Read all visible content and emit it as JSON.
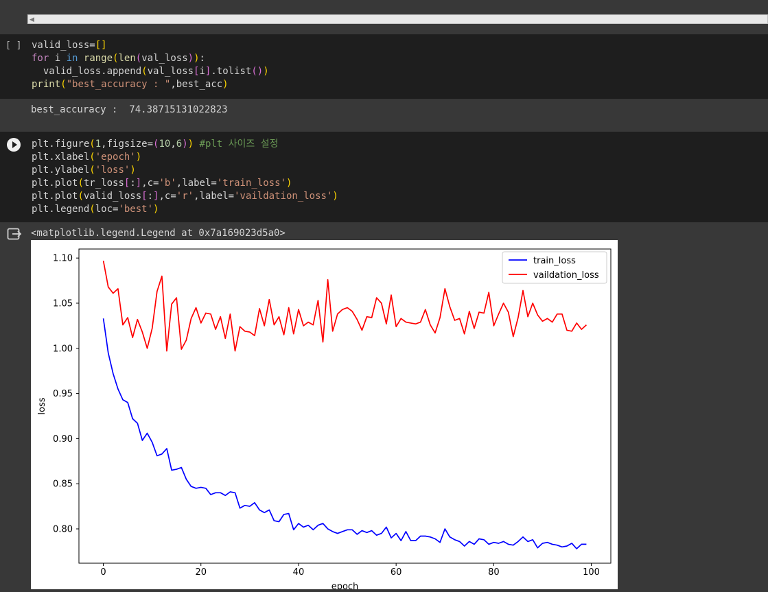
{
  "cell1": {
    "bracket": "[ ]",
    "output": "best_accuracy :  74.38715131022823"
  },
  "cell2": {
    "output": "<matplotlib.legend.Legend at 0x7a169023d5a0>"
  },
  "chart_data": {
    "type": "line",
    "xlabel": "epoch",
    "ylabel": "loss",
    "xlim": [
      -5,
      104
    ],
    "ylim": [
      0.762,
      1.11
    ],
    "xticks": [
      0,
      20,
      40,
      60,
      80,
      100
    ],
    "yticks": [
      0.8,
      0.85,
      0.9,
      0.95,
      1.0,
      1.05,
      1.1
    ],
    "legend_position": "top-right",
    "grid": false,
    "series": [
      {
        "name": "train_loss",
        "color": "#0000ff",
        "values": [
          1.033,
          0.995,
          0.972,
          0.955,
          0.943,
          0.94,
          0.922,
          0.917,
          0.898,
          0.906,
          0.896,
          0.881,
          0.883,
          0.889,
          0.865,
          0.866,
          0.868,
          0.855,
          0.847,
          0.845,
          0.846,
          0.845,
          0.838,
          0.84,
          0.84,
          0.837,
          0.841,
          0.84,
          0.823,
          0.826,
          0.825,
          0.829,
          0.821,
          0.818,
          0.821,
          0.809,
          0.808,
          0.816,
          0.817,
          0.799,
          0.806,
          0.802,
          0.804,
          0.799,
          0.804,
          0.806,
          0.8,
          0.797,
          0.795,
          0.797,
          0.799,
          0.799,
          0.794,
          0.798,
          0.796,
          0.798,
          0.793,
          0.795,
          0.802,
          0.79,
          0.795,
          0.787,
          0.797,
          0.787,
          0.787,
          0.792,
          0.792,
          0.791,
          0.789,
          0.785,
          0.8,
          0.791,
          0.788,
          0.786,
          0.781,
          0.786,
          0.783,
          0.789,
          0.788,
          0.783,
          0.785,
          0.784,
          0.786,
          0.783,
          0.782,
          0.786,
          0.791,
          0.786,
          0.788,
          0.779,
          0.784,
          0.785,
          0.783,
          0.782,
          0.78,
          0.781,
          0.784,
          0.778,
          0.783,
          0.783
        ]
      },
      {
        "name": "vaildation_loss",
        "color": "#ff0000",
        "values": [
          1.097,
          1.068,
          1.061,
          1.066,
          1.026,
          1.034,
          1.012,
          1.032,
          1.018,
          1.0,
          1.022,
          1.063,
          1.08,
          0.997,
          1.049,
          1.056,
          0.999,
          1.009,
          1.033,
          1.045,
          1.028,
          1.039,
          1.038,
          1.021,
          1.035,
          1.011,
          1.038,
          0.997,
          1.024,
          1.019,
          1.018,
          1.014,
          1.044,
          1.025,
          1.054,
          1.026,
          1.035,
          1.015,
          1.045,
          1.016,
          1.043,
          1.025,
          1.029,
          1.026,
          1.053,
          1.007,
          1.076,
          1.019,
          1.038,
          1.043,
          1.045,
          1.041,
          1.032,
          1.02,
          1.035,
          1.034,
          1.056,
          1.05,
          1.027,
          1.059,
          1.024,
          1.033,
          1.029,
          1.028,
          1.027,
          1.029,
          1.043,
          1.026,
          1.017,
          1.034,
          1.066,
          1.046,
          1.031,
          1.033,
          1.016,
          1.041,
          1.022,
          1.04,
          1.039,
          1.062,
          1.025,
          1.038,
          1.05,
          1.04,
          1.013,
          1.034,
          1.064,
          1.035,
          1.05,
          1.037,
          1.03,
          1.033,
          1.029,
          1.038,
          1.038,
          1.02,
          1.019,
          1.028,
          1.021,
          1.026
        ]
      }
    ]
  }
}
